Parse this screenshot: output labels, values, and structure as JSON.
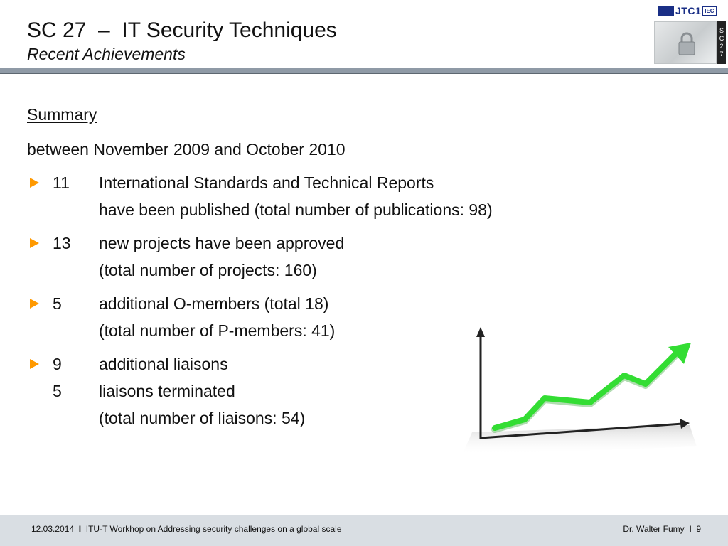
{
  "header": {
    "title": "SC 27  –  IT Security Techniques",
    "subtitle": "Recent Achievements",
    "logo_text": "JTC1",
    "logo_badge": "IEC",
    "sc_label": [
      "S",
      "C",
      "2",
      "7"
    ]
  },
  "content": {
    "summary": "Summary",
    "intro": "between November 2009 and October 2010",
    "bullets": [
      {
        "number": "11",
        "lines": [
          "International Standards and Technical Reports",
          "have been published (total number of publications: 98)"
        ]
      },
      {
        "number": "13",
        "lines": [
          "new projects have been approved",
          "(total number of projects: 160)"
        ]
      },
      {
        "number": "5",
        "lines": [
          "additional O-members (total 18)",
          "(total number of P-members: 41)"
        ]
      },
      {
        "number": "9",
        "lines": [
          "additional liaisons"
        ],
        "extra": {
          "number": "5",
          "lines": [
            "liaisons terminated",
            "(total number of liaisons: 54)"
          ]
        }
      }
    ]
  },
  "footer": {
    "date": "12.03.2014",
    "event": "ITU-T Workhop on Addressing security challenges on a global scale",
    "author": "Dr. Walter Fumy",
    "page": "9"
  },
  "colors": {
    "bullet_arrow": "#ff9900",
    "header_rule": "#8f9aa6",
    "chart_line": "#33dd33",
    "footer_bg": "#d9dee3"
  }
}
